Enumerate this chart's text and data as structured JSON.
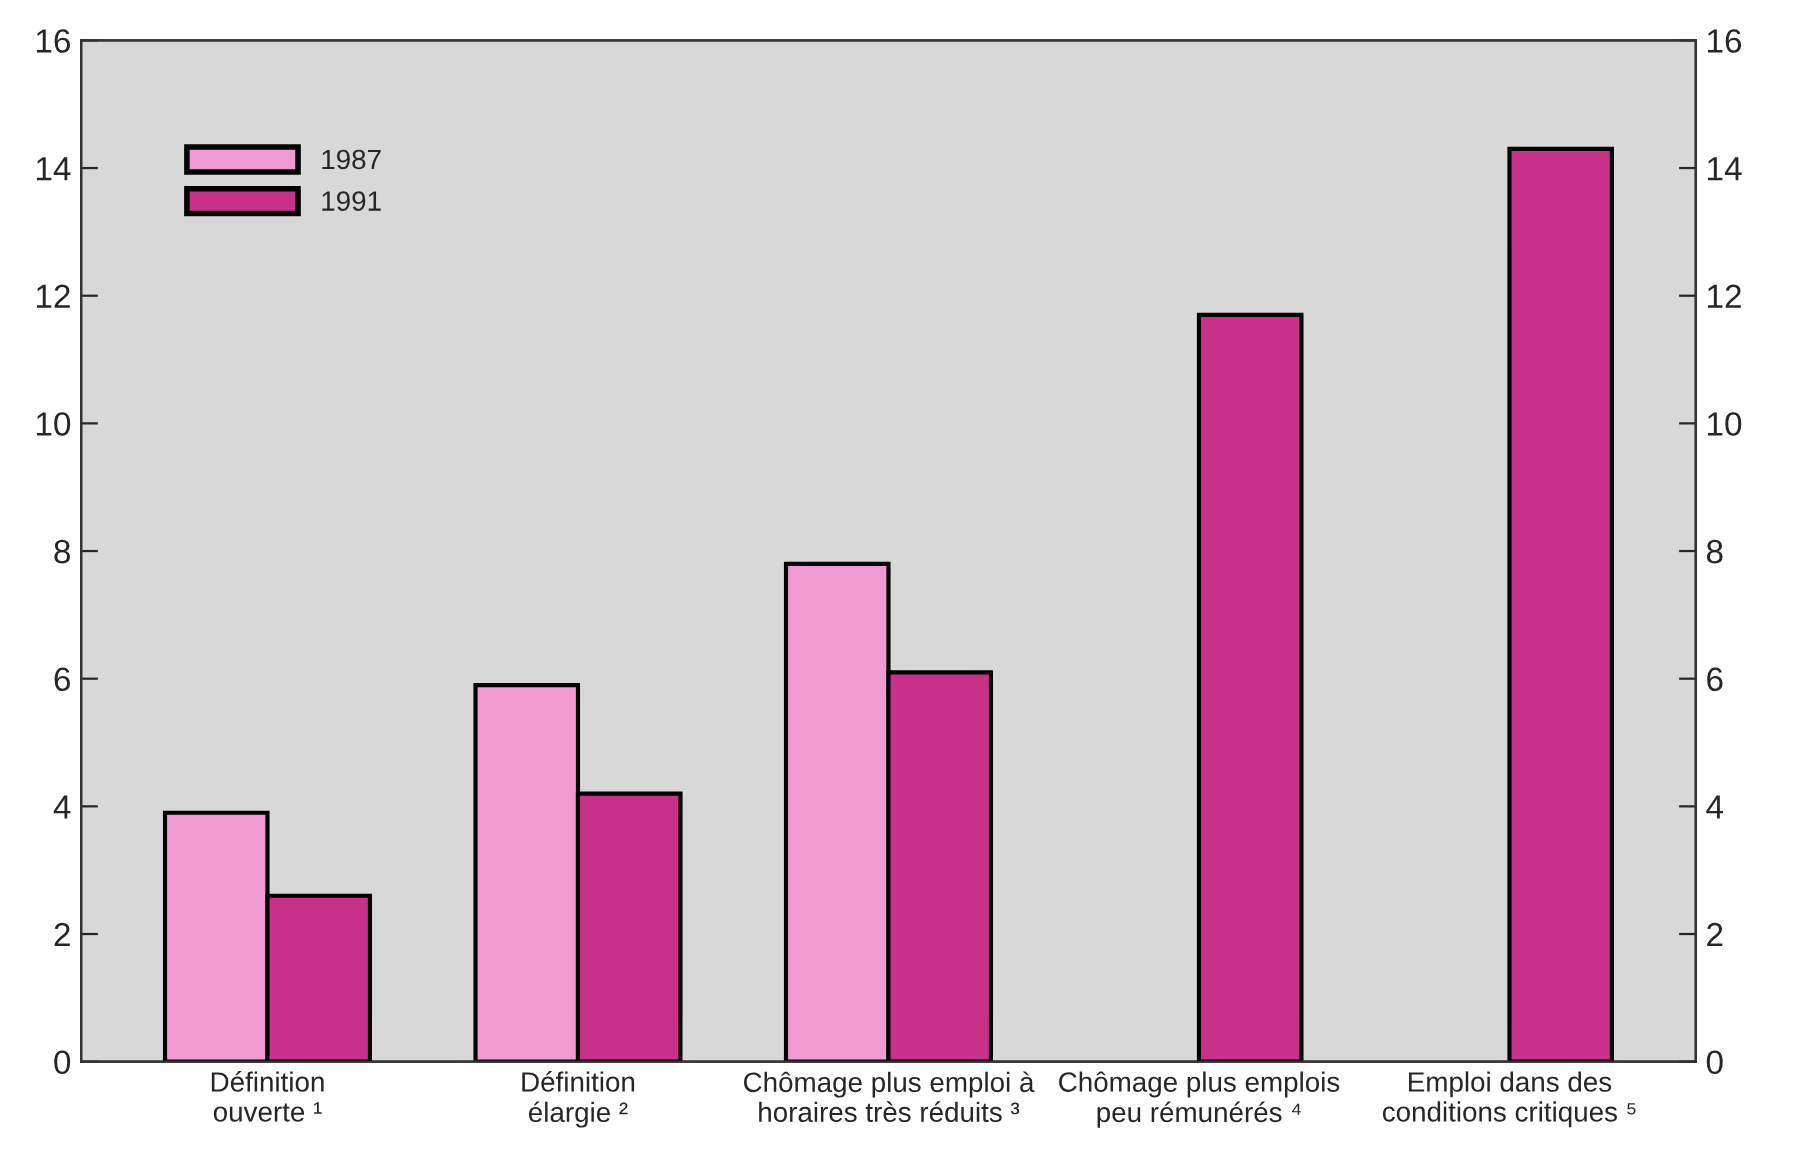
{
  "chart_data": {
    "type": "bar",
    "categories": [
      "Définition\nouverte ¹",
      "Définition\nélargie ²",
      "Chômage plus emploi à\nhoraires très réduits ³",
      "Chômage plus emplois\npeu rémunérés ⁴",
      "Emploi dans des\nconditions critiques ⁵"
    ],
    "series": [
      {
        "name": "1987",
        "color": "#f09ad4",
        "values": [
          3.9,
          5.9,
          7.8,
          null,
          null
        ]
      },
      {
        "name": "1991",
        "color": "#c8308a",
        "values": [
          2.6,
          4.2,
          6.1,
          11.7,
          14.3
        ]
      }
    ],
    "ylim": [
      0,
      16
    ],
    "yticks": [
      0,
      2,
      4,
      6,
      8,
      10,
      12,
      14,
      16
    ],
    "y2lim": [
      0,
      16
    ],
    "y2ticks": [
      0,
      2,
      4,
      6,
      8,
      10,
      12,
      14,
      16
    ],
    "legend": "top left"
  }
}
